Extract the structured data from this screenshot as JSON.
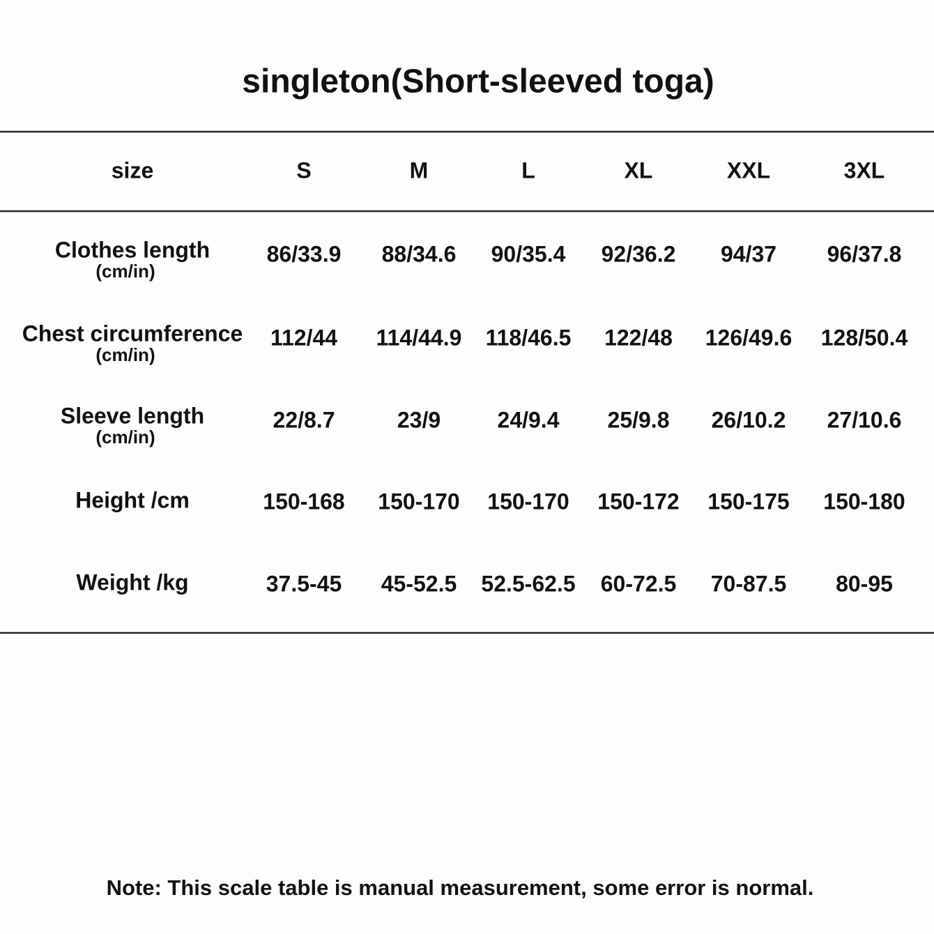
{
  "title": "singleton(Short-sleeved toga)",
  "table": {
    "header": [
      "size",
      "S",
      "M",
      "L",
      "XL",
      "XXL",
      "3XL"
    ],
    "rows": [
      {
        "label": "Clothes length",
        "sublabel": "(cm/in)",
        "cells": [
          "86/33.9",
          "88/34.6",
          "90/35.4",
          "92/36.2",
          "94/37",
          "96/37.8"
        ]
      },
      {
        "label": "Chest circumference",
        "sublabel": "(cm/in)",
        "cells": [
          "112/44",
          "114/44.9",
          "118/46.5",
          "122/48",
          "126/49.6",
          "128/50.4"
        ]
      },
      {
        "label": "Sleeve length",
        "sublabel": "(cm/in)",
        "cells": [
          "22/8.7",
          "23/9",
          "24/9.4",
          "25/9.8",
          "26/10.2",
          "27/10.6"
        ]
      },
      {
        "label": "Height /cm",
        "cells": [
          "150-168",
          "150-170",
          "150-170",
          "150-172",
          "150-175",
          "150-180"
        ]
      },
      {
        "label": "Weight /kg",
        "cells": [
          "37.5-45",
          "45-52.5",
          "52.5-62.5",
          "60-72.5",
          "70-87.5",
          "80-95"
        ]
      }
    ]
  },
  "note": "Note: This scale table is manual measurement, some error is normal."
}
